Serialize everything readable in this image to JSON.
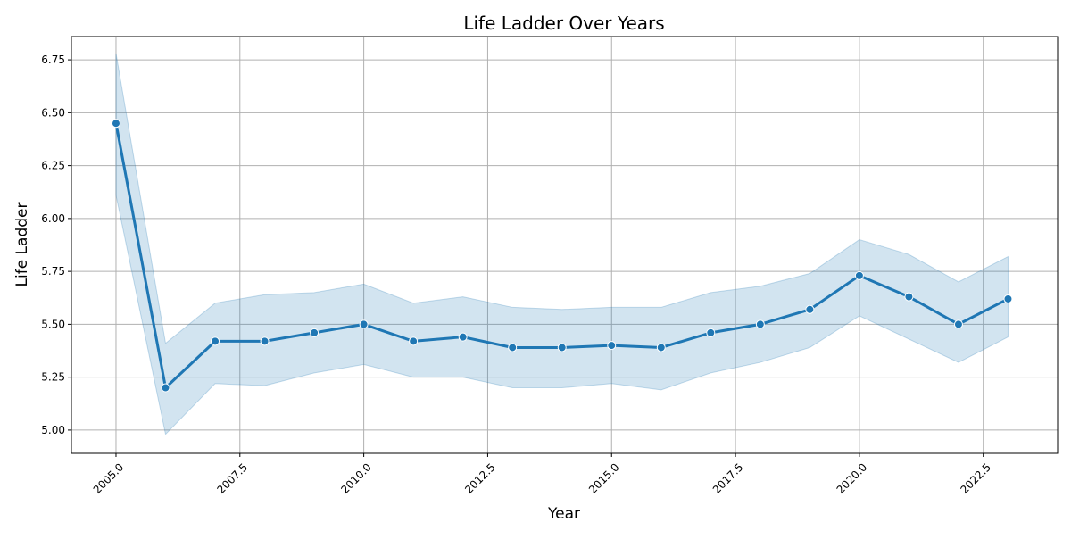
{
  "chart_data": {
    "type": "line",
    "title": "Life Ladder Over Years",
    "xlabel": "Year",
    "ylabel": "Life Ladder",
    "xlim": [
      2004.1,
      2024.0
    ],
    "ylim": [
      4.89,
      6.86
    ],
    "grid": true,
    "x_ticks": [
      2005.0,
      2007.5,
      2010.0,
      2012.5,
      2015.0,
      2017.5,
      2020.0,
      2022.5
    ],
    "x_tick_labels": [
      "2005.0",
      "2007.5",
      "2010.0",
      "2012.5",
      "2015.0",
      "2017.5",
      "2020.0",
      "2022.5"
    ],
    "y_ticks": [
      5.0,
      5.25,
      5.5,
      5.75,
      6.0,
      6.25,
      6.5,
      6.75
    ],
    "y_tick_labels": [
      "5.00",
      "5.25",
      "5.50",
      "5.75",
      "6.00",
      "6.25",
      "6.50",
      "6.75"
    ],
    "line_color": "#1f77b4",
    "band_color": "#1f77b4",
    "series": [
      {
        "x": [
          2005,
          2006,
          2007,
          2008,
          2009,
          2010,
          2011,
          2012,
          2013,
          2014,
          2015,
          2016,
          2017,
          2018,
          2019,
          2020,
          2021,
          2022,
          2023
        ],
        "values": [
          6.45,
          5.2,
          5.42,
          5.42,
          5.46,
          5.5,
          5.42,
          5.44,
          5.39,
          5.39,
          5.4,
          5.39,
          5.46,
          5.5,
          5.57,
          5.73,
          5.63,
          5.5,
          5.62
        ],
        "ci_lower": [
          6.11,
          4.98,
          5.22,
          5.21,
          5.27,
          5.31,
          5.25,
          5.25,
          5.2,
          5.2,
          5.22,
          5.19,
          5.27,
          5.32,
          5.39,
          5.54,
          5.43,
          5.32,
          5.44
        ],
        "ci_upper": [
          6.78,
          5.41,
          5.6,
          5.64,
          5.65,
          5.69,
          5.6,
          5.63,
          5.58,
          5.57,
          5.58,
          5.58,
          5.65,
          5.68,
          5.74,
          5.9,
          5.83,
          5.7,
          5.82
        ]
      }
    ]
  }
}
